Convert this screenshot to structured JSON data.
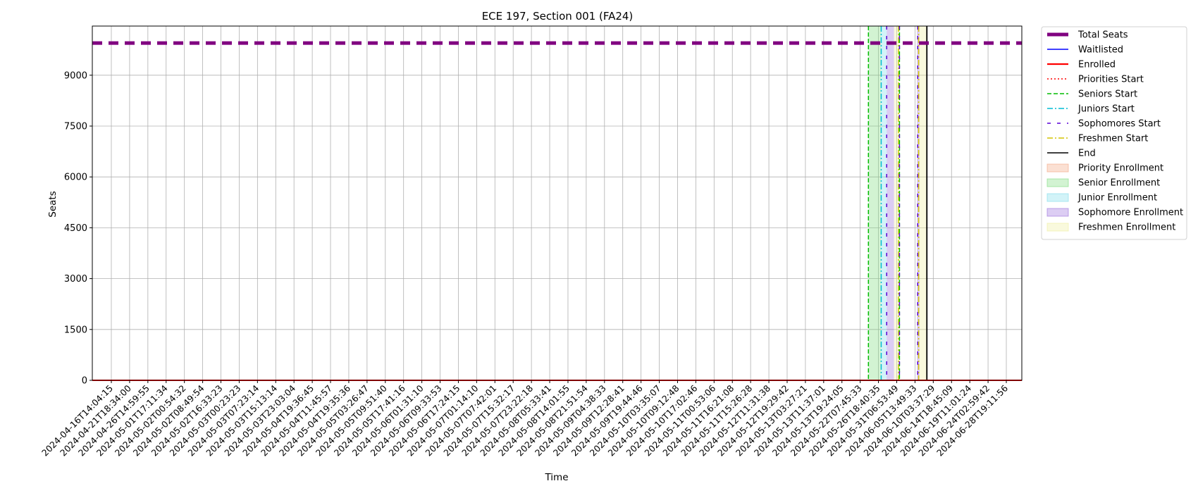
{
  "chart_data": {
    "type": "line",
    "title": "ECE 197, Section 001 (FA24)",
    "xlabel": "Time",
    "ylabel": "Seats",
    "ylim": [
      0,
      10450
    ],
    "yticks": [
      0,
      1500,
      3000,
      4500,
      6000,
      7500,
      9000
    ],
    "grid": true,
    "legend_position": "outside-right-top",
    "x_tick_labels": [
      "2024-04-16T14:04:15",
      "2024-04-21T18:34:00",
      "2024-04-26T14:59:55",
      "2024-05-01T17:11:34",
      "2024-05-02T00:54:32",
      "2024-05-02T08:49:54",
      "2024-05-02T16:33:23",
      "2024-05-03T00:23:23",
      "2024-05-03T07:23:14",
      "2024-05-03T15:13:14",
      "2024-05-03T23:03:04",
      "2024-05-04T19:36:45",
      "2024-05-04T11:45:57",
      "2024-05-04T19:35:36",
      "2024-05-05T03:26:47",
      "2024-05-05T09:51:40",
      "2024-05-05T17:41:16",
      "2024-05-06T01:31:10",
      "2024-05-06T09:33:53",
      "2024-05-06T17:24:15",
      "2024-05-07T01:14:10",
      "2024-05-07T07:42:01",
      "2024-05-07T15:32:17",
      "2024-05-07T23:22:18",
      "2024-05-08T05:33:41",
      "2024-05-08T14:01:55",
      "2024-05-08T21:51:54",
      "2024-05-09T04:38:33",
      "2024-05-09T12:28:41",
      "2024-05-09T19:44:46",
      "2024-05-10T03:35:07",
      "2024-05-10T09:12:48",
      "2024-05-10T17:02:46",
      "2024-05-11T00:53:06",
      "2024-05-11T16:21:08",
      "2024-05-11T15:26:28",
      "2024-05-12T11:31:38",
      "2024-05-12T19:29:42",
      "2024-05-13T03:27:21",
      "2024-05-13T11:37:01",
      "2024-05-13T19:24:05",
      "2024-05-22T07:45:33",
      "2024-05-26T18:40:35",
      "2024-05-31T06:53:49",
      "2024-06-05T13:49:33",
      "2024-06-10T03:37:29",
      "2024-06-14T18:45:09",
      "2024-06-19T11:01:24",
      "2024-06-24T02:59:42",
      "2024-06-28T19:11:56"
    ],
    "n_points": 50,
    "series": [
      {
        "name": "Total Seats",
        "color": "#800080",
        "style": "dashed-thick",
        "values_constant": 9950
      },
      {
        "name": "Waitlisted",
        "color": "#0000ff",
        "style": "solid",
        "values_constant": 0
      },
      {
        "name": "Enrolled",
        "color": "#ff0000",
        "style": "solid",
        "values_constant": 0
      }
    ],
    "vertical_markers": [
      {
        "name": "Priorities Start",
        "color": "#ff0000",
        "style": "dotted"
      },
      {
        "name": "Seniors Start",
        "color": "#00bb00",
        "style": "dashed",
        "x_index": 41.45
      },
      {
        "name": "Juniors Start",
        "color": "#00bcd4",
        "style": "dashdot",
        "x_index": 42.15
      },
      {
        "name": "Sophomores Start",
        "color": "#5a00d6",
        "style": "loosedash",
        "x_index": 42.45
      },
      {
        "name": "Freshmen Start",
        "color": "#d4c400",
        "style": "dashdot",
        "x_index": 43.1
      },
      {
        "name": "End",
        "color": "#000000",
        "style": "solid",
        "x_index": 44.65
      }
    ],
    "extra_marker_lines": [
      {
        "color": "#00bb00",
        "style": "dashed",
        "x_index": 43.15
      },
      {
        "color": "#5a00d6",
        "style": "loosedash",
        "x_index": 43.15
      },
      {
        "color": "#5a00d6",
        "style": "loosedash",
        "x_index": 44.15
      },
      {
        "color": "#d4c400",
        "style": "dashdot",
        "x_index": 44.2
      }
    ],
    "spans": [
      {
        "name": "Priority Enrollment",
        "color": "#f4a582",
        "x_start_index": 41.45,
        "x_end_index": 41.45
      },
      {
        "name": "Senior Enrollment",
        "color": "#7fdc7f",
        "x_start_index": 41.45,
        "x_end_index": 42.15
      },
      {
        "name": "Junior Enrollment",
        "color": "#7fdcea",
        "x_start_index": 42.15,
        "x_end_index": 42.45
      },
      {
        "name": "Sophomore Enrollment",
        "color": "#9b6fdc",
        "x_start_index": 42.45,
        "x_end_index": 42.85
      },
      {
        "name": "Freshmen Enrollment",
        "color": "#efee9f",
        "x_start_index": 42.85,
        "x_end_index": 43.15
      },
      {
        "name": "Sophomore Enrollment",
        "color": "#9b6fdc",
        "x_start_index": 44.1,
        "x_end_index": 44.25
      },
      {
        "name": "Freshmen Enrollment",
        "color": "#efee9f",
        "x_start_index": 44.25,
        "x_end_index": 44.65
      }
    ],
    "legend": [
      {
        "label": "Total Seats",
        "kind": "line",
        "color": "#800080",
        "style": "thick"
      },
      {
        "label": "Waitlisted",
        "kind": "line",
        "color": "#0000ff",
        "style": "solid"
      },
      {
        "label": "Enrolled",
        "kind": "line",
        "color": "#ff0000",
        "style": "solid-bold"
      },
      {
        "label": "Priorities Start",
        "kind": "line",
        "color": "#ff0000",
        "style": "dotted"
      },
      {
        "label": "Seniors Start",
        "kind": "line",
        "color": "#00bb00",
        "style": "dashed"
      },
      {
        "label": "Juniors Start",
        "kind": "line",
        "color": "#00bcd4",
        "style": "dashdot"
      },
      {
        "label": "Sophomores Start",
        "kind": "line",
        "color": "#5a00d6",
        "style": "loosedash"
      },
      {
        "label": "Freshmen Start",
        "kind": "line",
        "color": "#d4c400",
        "style": "dashdot"
      },
      {
        "label": "End",
        "kind": "line",
        "color": "#000000",
        "style": "solid"
      },
      {
        "label": "Priority Enrollment",
        "kind": "patch",
        "color": "#f4a582"
      },
      {
        "label": "Senior Enrollment",
        "kind": "patch",
        "color": "#7fdc7f"
      },
      {
        "label": "Junior Enrollment",
        "kind": "patch",
        "color": "#7fdcea"
      },
      {
        "label": "Sophomore Enrollment",
        "kind": "patch",
        "color": "#9b6fdc"
      },
      {
        "label": "Freshmen Enrollment",
        "kind": "patch",
        "color": "#efee9f"
      }
    ]
  }
}
